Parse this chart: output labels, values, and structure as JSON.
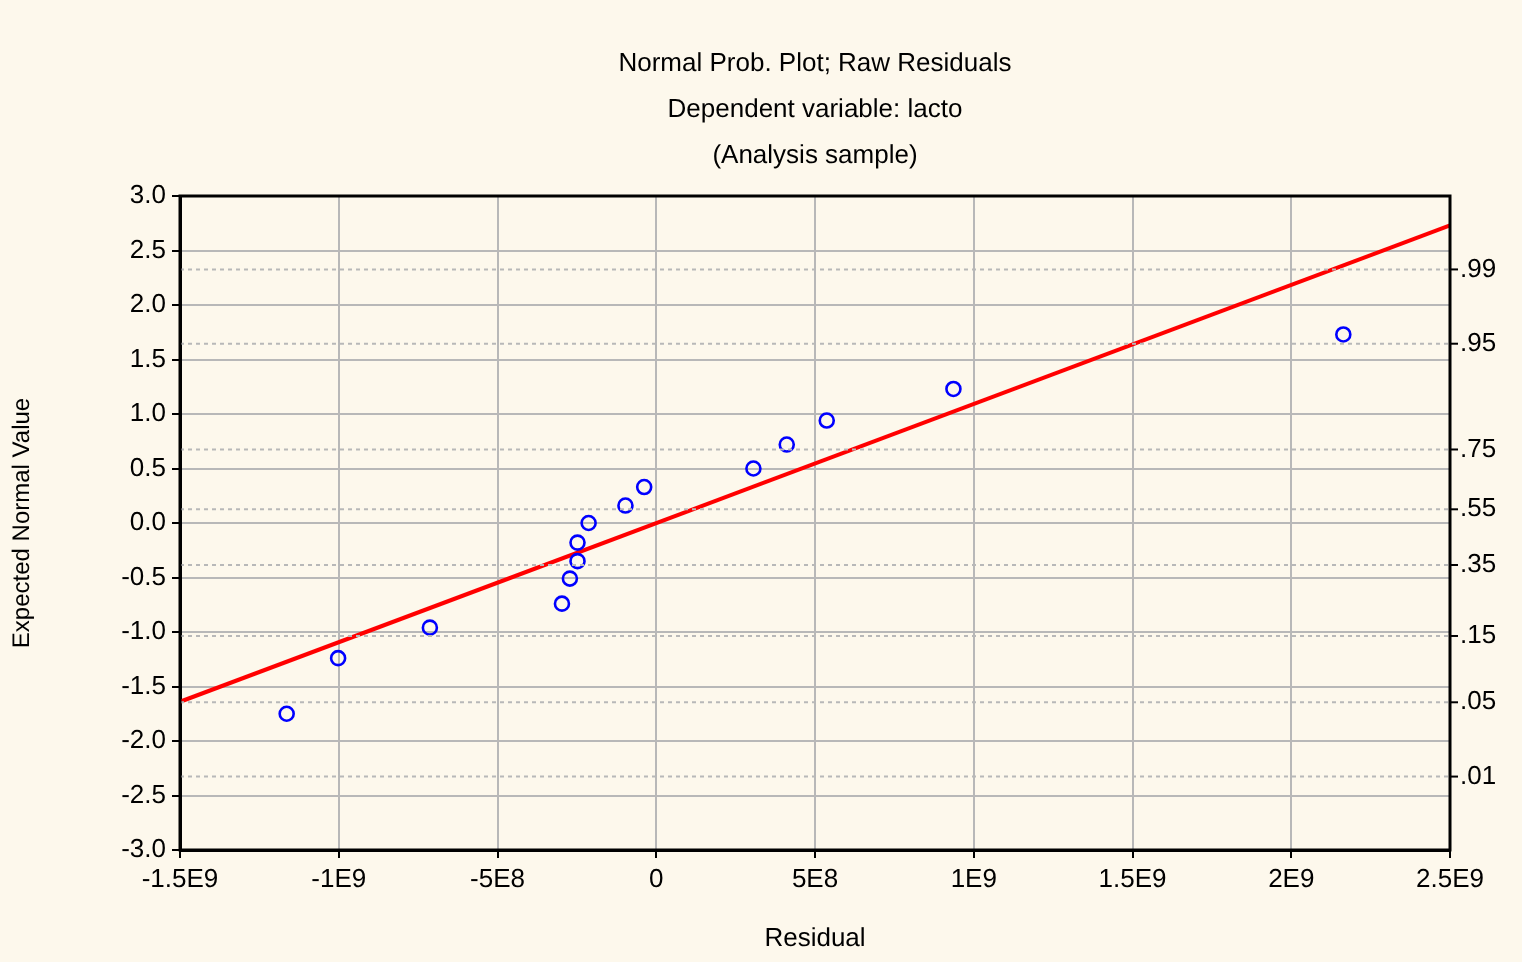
{
  "chart_data": {
    "type": "scatter",
    "title": "Normal Prob. Plot; Raw Residuals",
    "subtitle": "Dependent variable: lacto\n(Analysis sample)",
    "xlabel": "Residual",
    "ylabel": "Expected Normal Value",
    "series": [
      {
        "color": "#0000ff",
        "marker": "circle",
        "x": [
          -1164000000,
          -1002000000,
          -713000000,
          -297000000,
          -272000000,
          -248000000,
          -248000000,
          -213000000,
          -97000000,
          -38000000,
          306000000,
          411000000,
          537000000,
          936000000,
          2164000000
        ],
        "values": [
          -1.75,
          -1.24,
          -0.96,
          -0.74,
          -0.51,
          -0.35,
          -0.18,
          0.0,
          0.16,
          0.33,
          0.5,
          0.72,
          0.94,
          1.23,
          1.73
        ]
      },
      {
        "type": "line",
        "color": "#ff0000",
        "marker": "none",
        "x": [
          -1500000000,
          2500000000
        ],
        "values": [
          -1.64,
          2.73
        ]
      }
    ],
    "xlim": [
      -1500000000,
      2500000000
    ],
    "xticks": [
      {
        "value": -1500000000,
        "label": "-1.5E9"
      },
      {
        "value": -1000000000,
        "label": "-1E9"
      },
      {
        "value": -500000000,
        "label": "-5E8"
      },
      0,
      {
        "value": 500000000,
        "label": "5E8"
      },
      {
        "value": 1000000000,
        "label": "1E9"
      },
      {
        "value": 1500000000,
        "label": "1.5E9"
      },
      {
        "value": 2000000000,
        "label": "2E9"
      },
      {
        "value": 2500000000,
        "label": "2.5E9"
      }
    ],
    "ylim": [
      -3,
      3
    ],
    "yticks": [
      {
        "value": -3,
        "label": "-3.0"
      },
      {
        "value": -2.5,
        "label": "-2.5"
      },
      {
        "value": -2,
        "label": "-2.0"
      },
      {
        "value": -1.5,
        "label": "-1.5"
      },
      {
        "value": -1,
        "label": "-1.0"
      },
      {
        "value": -0.5,
        "label": "-0.5"
      },
      {
        "value": 0,
        "label": "0.0"
      },
      {
        "value": 0.5,
        "label": "0.5"
      },
      {
        "value": 1,
        "label": "1.0"
      },
      {
        "value": 1.5,
        "label": "1.5"
      },
      {
        "value": 2,
        "label": "2.0"
      },
      {
        "value": 2.5,
        "label": "2.5"
      },
      {
        "value": 3,
        "label": "3.0"
      }
    ],
    "annotations": [
      ".01",
      ".05",
      ".15",
      ".35",
      ".55",
      ".75",
      ".95",
      ".99"
    ],
    "grid": true,
    "legend": false
  }
}
